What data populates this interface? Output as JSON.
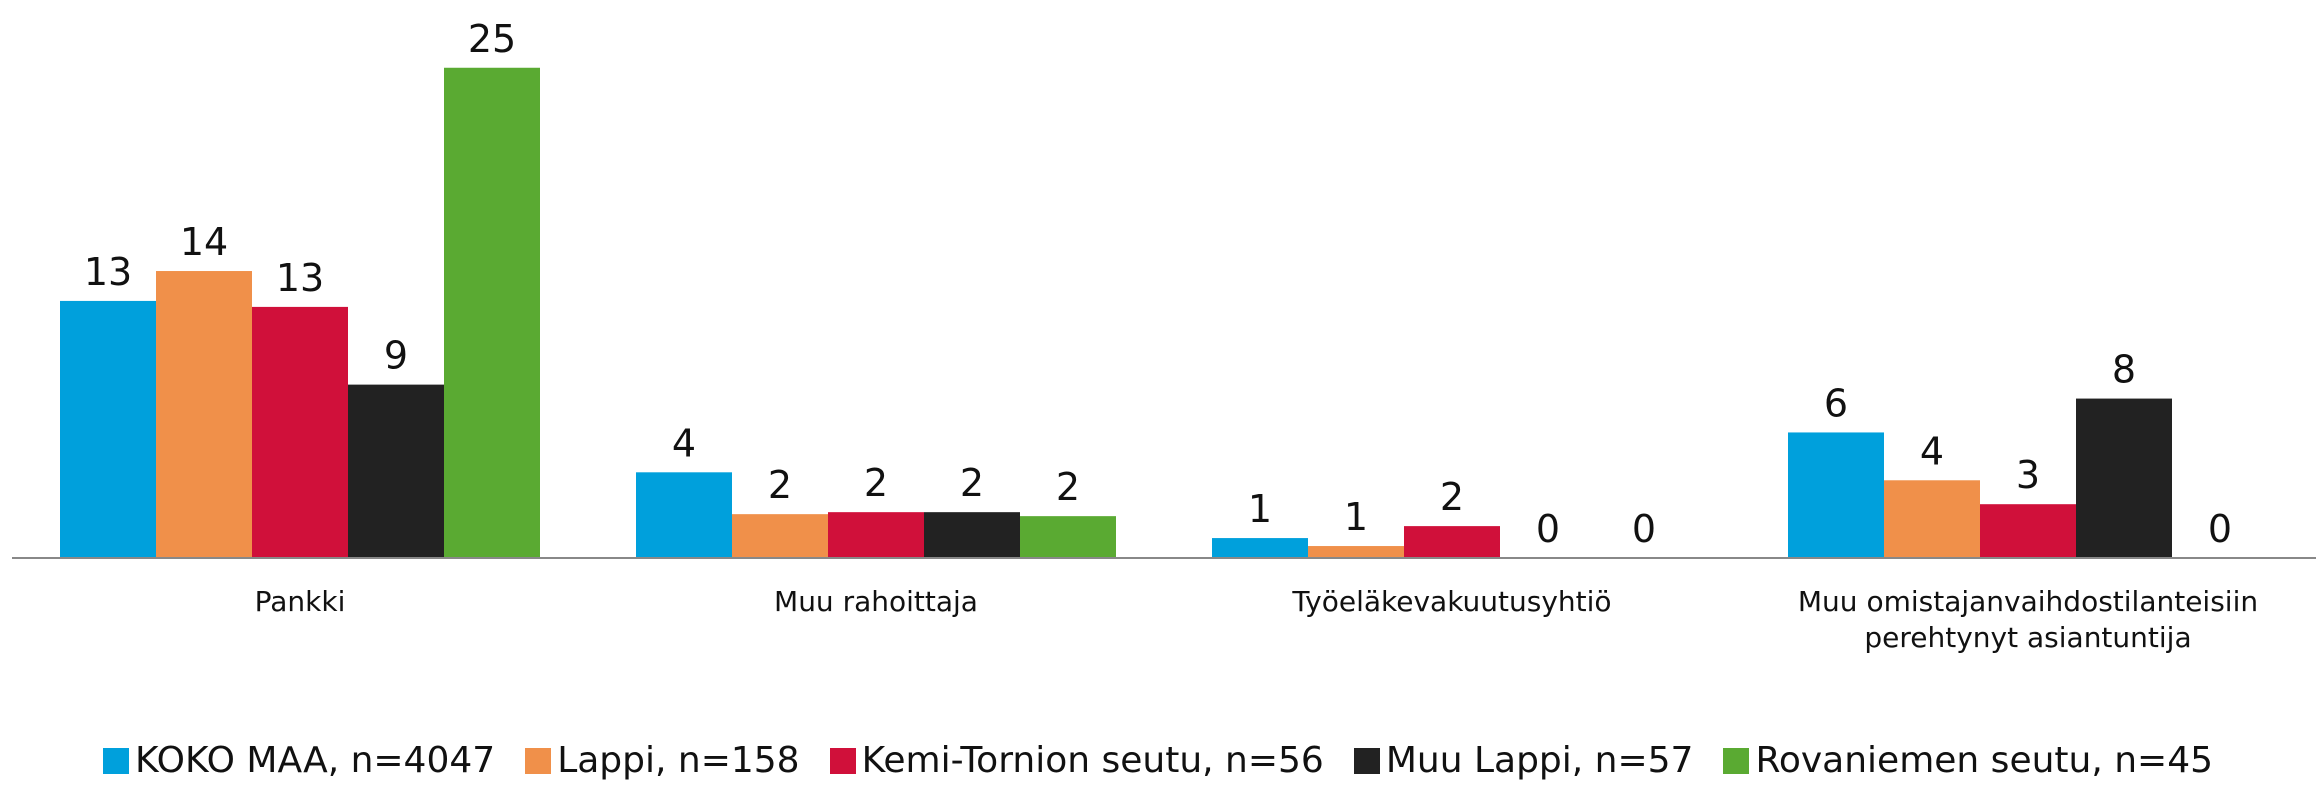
{
  "chart_data": {
    "type": "bar",
    "categories": [
      "Pankki",
      "Muu rahoittaja",
      "Työeläkevakuutusyhtiö",
      "Muu omistajanvaihdostilanteisiin perehtynyt asiantuntija"
    ],
    "series": [
      {
        "name": "KOKO MAA, n=4047",
        "color": "#00a0dc",
        "values": [
          12.9,
          4.3,
          1.0,
          6.3
        ],
        "value_labels": [
          "13",
          "4",
          "1",
          "6"
        ]
      },
      {
        "name": "Lappi, n=158",
        "color": "#f0904a",
        "values": [
          14.4,
          2.2,
          0.6,
          3.9
        ],
        "value_labels": [
          "14",
          "2",
          "1",
          "4"
        ]
      },
      {
        "name": "Kemi-Tornion seutu, n=56",
        "color": "#d0103a",
        "values": [
          12.6,
          2.3,
          1.6,
          2.7
        ],
        "value_labels": [
          "13",
          "2",
          "2",
          "3"
        ]
      },
      {
        "name": "Muu Lappi, n=57",
        "color": "#222222",
        "values": [
          8.7,
          2.3,
          0,
          8.0
        ],
        "value_labels": [
          "9",
          "2",
          "0",
          "8"
        ]
      },
      {
        "name": "Rovaniemen seutu, n=45",
        "color": "#5aaa32",
        "values": [
          24.6,
          2.1,
          0,
          0
        ],
        "value_labels": [
          "25",
          "2",
          "0",
          "0"
        ]
      }
    ],
    "ylim": [
      0,
      28
    ]
  }
}
